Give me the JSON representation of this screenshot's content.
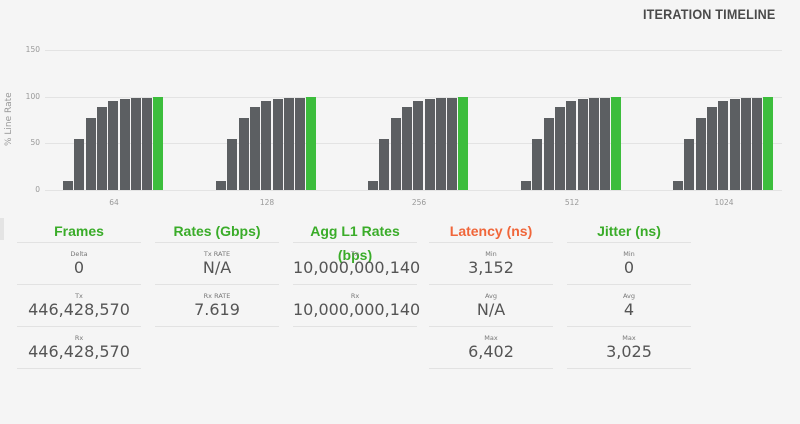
{
  "header": {
    "title": "ITERATION TIMELINE"
  },
  "chart_data": {
    "type": "bar",
    "title": "ITERATION TIMELINE",
    "xlabel": "",
    "ylabel": "% Line Rate",
    "ylim": [
      0,
      150
    ],
    "yticks": [
      "150",
      "100",
      "50",
      "0"
    ],
    "grid": true,
    "categories": [
      "64",
      "128",
      "256",
      "512",
      "1024"
    ],
    "iterations_per_category": 9,
    "series": [
      {
        "name": "64",
        "values": [
          10,
          55,
          77,
          89,
          95,
          97,
          99,
          99,
          100
        ]
      },
      {
        "name": "128",
        "values": [
          10,
          55,
          77,
          89,
          95,
          97,
          99,
          99,
          100
        ]
      },
      {
        "name": "256",
        "values": [
          10,
          55,
          77,
          89,
          95,
          97,
          99,
          99,
          100
        ]
      },
      {
        "name": "512",
        "values": [
          10,
          55,
          77,
          89,
          95,
          97,
          99,
          99,
          100
        ]
      },
      {
        "name": "1024",
        "values": [
          10,
          55,
          77,
          89,
          95,
          97,
          99,
          99,
          100
        ]
      }
    ],
    "colors": {
      "iteration": "#5c5f62",
      "final": "#3cbd3c"
    }
  },
  "stats": {
    "frames": {
      "title": "Frames",
      "rows": [
        {
          "label": "Delta",
          "value": "0"
        },
        {
          "label": "Tx",
          "value": "446,428,570"
        },
        {
          "label": "Rx",
          "value": "446,428,570"
        }
      ]
    },
    "rates": {
      "title": "Rates (Gbps)",
      "rows": [
        {
          "label": "Tx RATE",
          "value": "N/A"
        },
        {
          "label": "Rx RATE",
          "value": "7.619"
        }
      ]
    },
    "agg": {
      "title": "Agg L1 Rates (bps)",
      "rows": [
        {
          "label": "Tx",
          "value": "10,000,000,140"
        },
        {
          "label": "Rx",
          "value": "10,000,000,140"
        }
      ]
    },
    "latency": {
      "title": "Latency (ns)",
      "rows": [
        {
          "label": "Min",
          "value": "3,152"
        },
        {
          "label": "Avg",
          "value": "N/A"
        },
        {
          "label": "Max",
          "value": "6,402"
        }
      ]
    },
    "jitter": {
      "title": "Jitter (ns)",
      "rows": [
        {
          "label": "Min",
          "value": "0"
        },
        {
          "label": "Avg",
          "value": "4"
        },
        {
          "label": "Max",
          "value": "3,025"
        }
      ]
    }
  }
}
